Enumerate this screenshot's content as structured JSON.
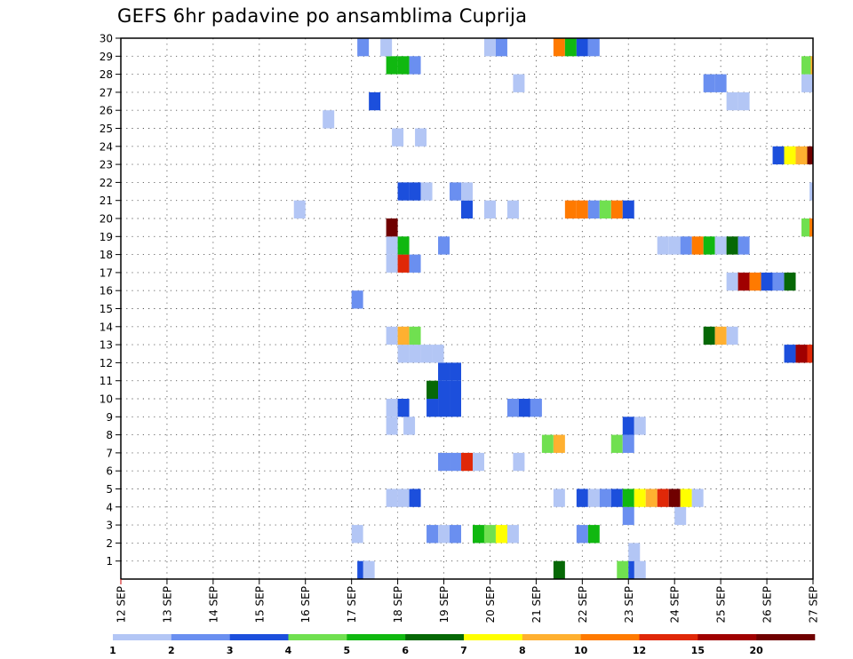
{
  "chart_data": {
    "type": "heatmap",
    "title": "GEFS 6hr padavine po ansamblima Cuprija",
    "xlabel": "",
    "ylabel": "",
    "x_tick_labels": [
      "12 SEP",
      "13 SEP",
      "14 SEP",
      "15 SEP",
      "16 SEP",
      "17 SEP",
      "18 SEP",
      "19 SEP",
      "20 SEP",
      "21 SEP",
      "22 SEP",
      "23 SEP",
      "24 SEP",
      "25 SEP",
      "26 SEP",
      "27 SEP"
    ],
    "y_tick_labels": [
      "1",
      "2",
      "3",
      "4",
      "5",
      "6",
      "7",
      "8",
      "9",
      "10",
      "11",
      "12",
      "13",
      "14",
      "15",
      "16",
      "17",
      "18",
      "19",
      "20",
      "21",
      "22",
      "23",
      "24",
      "25",
      "26",
      "27",
      "28",
      "29",
      "30"
    ],
    "xlim": [
      0,
      60
    ],
    "ylim": [
      0,
      30
    ],
    "x_units": "6-hour steps from 12 SEP 00",
    "y_units": "ensemble member",
    "grid": true,
    "colorbar": {
      "placement": "bottom",
      "tick_labels": [
        "1",
        "2",
        "3",
        "4",
        "5",
        "6",
        "7",
        "8",
        "10",
        "12",
        "15",
        "20"
      ],
      "colors": [
        "#b3c6f5",
        "#6a8ff0",
        "#1c4fdc",
        "#70e050",
        "#10b810",
        "#066806",
        "#ffff00",
        "#ffb030",
        "#ff7a00",
        "#e02808",
        "#a00000",
        "#700000"
      ]
    },
    "cells": [
      {
        "x": 20.5,
        "y": 0,
        "c": 2
      },
      {
        "x": 21,
        "y": 0,
        "c": 0
      },
      {
        "x": 37.5,
        "y": 0,
        "c": 5
      },
      {
        "x": 43,
        "y": 0,
        "c": 3
      },
      {
        "x": 44,
        "y": 0,
        "c": 2
      },
      {
        "x": 44.5,
        "y": 0,
        "c": 0
      },
      {
        "x": 44,
        "y": 1,
        "c": 0
      },
      {
        "x": 20,
        "y": 2,
        "c": 0
      },
      {
        "x": 26.5,
        "y": 2,
        "c": 1
      },
      {
        "x": 27.5,
        "y": 2,
        "c": 0
      },
      {
        "x": 28.5,
        "y": 2,
        "c": 1
      },
      {
        "x": 30.5,
        "y": 2,
        "c": 4
      },
      {
        "x": 31.5,
        "y": 2,
        "c": 3
      },
      {
        "x": 32.5,
        "y": 2,
        "c": 6
      },
      {
        "x": 33.5,
        "y": 2,
        "c": 0
      },
      {
        "x": 39.5,
        "y": 2,
        "c": 1
      },
      {
        "x": 40.5,
        "y": 2,
        "c": 4
      },
      {
        "x": 43.5,
        "y": 3,
        "c": 1
      },
      {
        "x": 48,
        "y": 3,
        "c": 0
      },
      {
        "x": 23,
        "y": 4,
        "c": 0
      },
      {
        "x": 24,
        "y": 4,
        "c": 0
      },
      {
        "x": 25,
        "y": 4,
        "c": 2
      },
      {
        "x": 37.5,
        "y": 4,
        "c": 0
      },
      {
        "x": 39.5,
        "y": 4,
        "c": 2
      },
      {
        "x": 40.5,
        "y": 4,
        "c": 0
      },
      {
        "x": 41.5,
        "y": 4,
        "c": 1
      },
      {
        "x": 42.5,
        "y": 4,
        "c": 2
      },
      {
        "x": 43.5,
        "y": 4,
        "c": 4
      },
      {
        "x": 44.5,
        "y": 4,
        "c": 6
      },
      {
        "x": 45.5,
        "y": 4,
        "c": 7
      },
      {
        "x": 46.5,
        "y": 4,
        "c": 9
      },
      {
        "x": 47.5,
        "y": 4,
        "c": 11
      },
      {
        "x": 48.5,
        "y": 4,
        "c": 6
      },
      {
        "x": 49.5,
        "y": 4,
        "c": 0
      },
      {
        "x": 27.5,
        "y": 6,
        "c": 1
      },
      {
        "x": 28.5,
        "y": 6,
        "c": 1
      },
      {
        "x": 29.5,
        "y": 6,
        "c": 9
      },
      {
        "x": 30.5,
        "y": 6,
        "c": 0
      },
      {
        "x": 34,
        "y": 6,
        "c": 0
      },
      {
        "x": 36.5,
        "y": 7,
        "c": 3
      },
      {
        "x": 37.5,
        "y": 7,
        "c": 7
      },
      {
        "x": 42.5,
        "y": 7,
        "c": 3
      },
      {
        "x": 43.5,
        "y": 7,
        "c": 1
      },
      {
        "x": 23,
        "y": 8,
        "c": 0
      },
      {
        "x": 24.5,
        "y": 8,
        "c": 0
      },
      {
        "x": 43.5,
        "y": 8,
        "c": 2
      },
      {
        "x": 44.5,
        "y": 8,
        "c": 0
      },
      {
        "x": 23,
        "y": 9,
        "c": 0
      },
      {
        "x": 24,
        "y": 9,
        "c": 2
      },
      {
        "x": 26.5,
        "y": 9,
        "c": 2
      },
      {
        "x": 27.5,
        "y": 9,
        "c": 2
      },
      {
        "x": 28.5,
        "y": 9,
        "c": 2
      },
      {
        "x": 33.5,
        "y": 9,
        "c": 1
      },
      {
        "x": 34.5,
        "y": 9,
        "c": 2
      },
      {
        "x": 35.5,
        "y": 9,
        "c": 1
      },
      {
        "x": 26.5,
        "y": 10,
        "c": 5
      },
      {
        "x": 27.5,
        "y": 10,
        "c": 2
      },
      {
        "x": 28.5,
        "y": 10,
        "c": 2
      },
      {
        "x": 27.5,
        "y": 11,
        "c": 2
      },
      {
        "x": 28.5,
        "y": 11,
        "c": 2
      },
      {
        "x": 24,
        "y": 12,
        "c": 0
      },
      {
        "x": 25,
        "y": 12,
        "c": 0
      },
      {
        "x": 26,
        "y": 12,
        "c": 0
      },
      {
        "x": 27,
        "y": 12,
        "c": 0
      },
      {
        "x": 57.5,
        "y": 12,
        "c": 2
      },
      {
        "x": 58.5,
        "y": 12,
        "c": 10
      },
      {
        "x": 59.5,
        "y": 12,
        "c": 9
      },
      {
        "x": 23,
        "y": 13,
        "c": 0
      },
      {
        "x": 24,
        "y": 13,
        "c": 7
      },
      {
        "x": 25,
        "y": 13,
        "c": 3
      },
      {
        "x": 50.5,
        "y": 13,
        "c": 5
      },
      {
        "x": 51.5,
        "y": 13,
        "c": 7
      },
      {
        "x": 52.5,
        "y": 13,
        "c": 0
      },
      {
        "x": 20,
        "y": 15,
        "c": 1
      },
      {
        "x": 52.5,
        "y": 16,
        "c": 0
      },
      {
        "x": 53.5,
        "y": 16,
        "c": 10
      },
      {
        "x": 54.5,
        "y": 16,
        "c": 8
      },
      {
        "x": 55.5,
        "y": 16,
        "c": 2
      },
      {
        "x": 56.5,
        "y": 16,
        "c": 1
      },
      {
        "x": 57.5,
        "y": 16,
        "c": 5
      },
      {
        "x": 23,
        "y": 17,
        "c": 0
      },
      {
        "x": 24,
        "y": 17,
        "c": 9
      },
      {
        "x": 25,
        "y": 17,
        "c": 1
      },
      {
        "x": 23,
        "y": 18,
        "c": 0
      },
      {
        "x": 24,
        "y": 18,
        "c": 4
      },
      {
        "x": 27.5,
        "y": 18,
        "c": 1
      },
      {
        "x": 46.5,
        "y": 18,
        "c": 0
      },
      {
        "x": 47.5,
        "y": 18,
        "c": 0
      },
      {
        "x": 48.5,
        "y": 18,
        "c": 1
      },
      {
        "x": 49.5,
        "y": 18,
        "c": 8
      },
      {
        "x": 50.5,
        "y": 18,
        "c": 4
      },
      {
        "x": 51.5,
        "y": 18,
        "c": 0
      },
      {
        "x": 52.5,
        "y": 18,
        "c": 5
      },
      {
        "x": 53.5,
        "y": 18,
        "c": 1
      },
      {
        "x": 23,
        "y": 19,
        "c": 11
      },
      {
        "x": 59,
        "y": 19,
        "c": 3
      },
      {
        "x": 59.7,
        "y": 19,
        "c": 8
      },
      {
        "x": 15,
        "y": 20,
        "c": 0
      },
      {
        "x": 29.5,
        "y": 20,
        "c": 2
      },
      {
        "x": 31.5,
        "y": 20,
        "c": 0
      },
      {
        "x": 33.5,
        "y": 20,
        "c": 0
      },
      {
        "x": 38.5,
        "y": 20,
        "c": 8
      },
      {
        "x": 39.5,
        "y": 20,
        "c": 8
      },
      {
        "x": 40.5,
        "y": 20,
        "c": 1
      },
      {
        "x": 41.5,
        "y": 20,
        "c": 3
      },
      {
        "x": 42.5,
        "y": 20,
        "c": 8
      },
      {
        "x": 43.5,
        "y": 20,
        "c": 2
      },
      {
        "x": 24,
        "y": 21,
        "c": 2
      },
      {
        "x": 25,
        "y": 21,
        "c": 2
      },
      {
        "x": 26,
        "y": 21,
        "c": 0
      },
      {
        "x": 28.5,
        "y": 21,
        "c": 1
      },
      {
        "x": 29.5,
        "y": 21,
        "c": 0
      },
      {
        "x": 59.7,
        "y": 21,
        "c": 0
      },
      {
        "x": 56.5,
        "y": 23,
        "c": 2
      },
      {
        "x": 57.5,
        "y": 23,
        "c": 6
      },
      {
        "x": 58.5,
        "y": 23,
        "c": 7
      },
      {
        "x": 59.5,
        "y": 23,
        "c": 11
      },
      {
        "x": 23.5,
        "y": 24,
        "c": 0
      },
      {
        "x": 25.5,
        "y": 24,
        "c": 0
      },
      {
        "x": 17.5,
        "y": 25,
        "c": 0
      },
      {
        "x": 21.5,
        "y": 26,
        "c": 2
      },
      {
        "x": 52.5,
        "y": 26,
        "c": 0
      },
      {
        "x": 53.5,
        "y": 26,
        "c": 0
      },
      {
        "x": 34,
        "y": 27,
        "c": 0
      },
      {
        "x": 50.5,
        "y": 27,
        "c": 1
      },
      {
        "x": 51.5,
        "y": 27,
        "c": 1
      },
      {
        "x": 59,
        "y": 27,
        "c": 0
      },
      {
        "x": 23,
        "y": 28,
        "c": 4
      },
      {
        "x": 24,
        "y": 28,
        "c": 4
      },
      {
        "x": 25,
        "y": 28,
        "c": 1
      },
      {
        "x": 59,
        "y": 28,
        "c": 3
      },
      {
        "x": 59.8,
        "y": 28,
        "c": 7
      },
      {
        "x": 20.5,
        "y": 29,
        "c": 1
      },
      {
        "x": 22.5,
        "y": 29,
        "c": 0
      },
      {
        "x": 31.5,
        "y": 29,
        "c": 0
      },
      {
        "x": 32.5,
        "y": 29,
        "c": 1
      },
      {
        "x": 37.5,
        "y": 29,
        "c": 8
      },
      {
        "x": 38.5,
        "y": 29,
        "c": 4
      },
      {
        "x": 39.5,
        "y": 29,
        "c": 2
      },
      {
        "x": 40.5,
        "y": 29,
        "c": 1
      }
    ]
  }
}
